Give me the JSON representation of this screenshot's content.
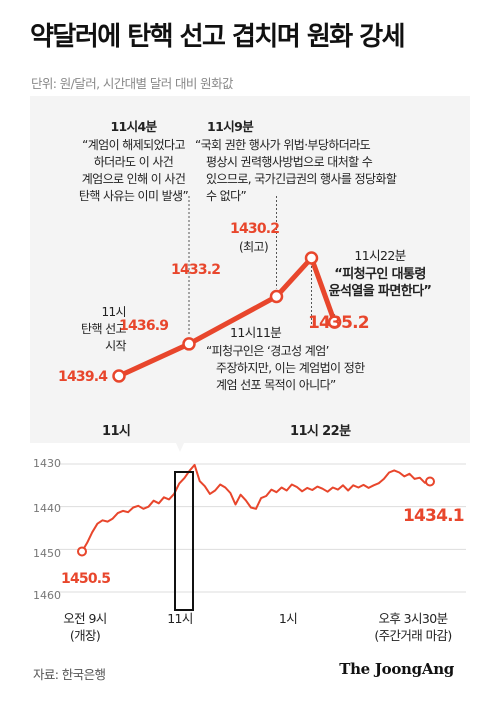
{
  "title": "약달러에 탄핵 선고 겹치며 원화 강세",
  "unit_label": "단위: 원/달러, 시간대별 달러 대비 원화값",
  "colors": {
    "accent": "#e8462c",
    "panel_bg": "#f4f4f4",
    "grid": "#dddddd"
  },
  "annotations": {
    "a1104": {
      "title": "11시4분",
      "lines": [
        "“계엄이 해제되었다고",
        "하더라도 이 사건",
        "계엄으로 인해 이 사건",
        "탄핵 사유는 이미 발생”"
      ]
    },
    "a1109": {
      "title": "11시9분",
      "lines": [
        "“국회 권한 행사가 위법·부당하더라도",
        "평상시 권력행사방법으로 대처할 수",
        "있으므로, 국가긴급권의 행사를 정당화할",
        "수 없다”"
      ]
    },
    "a1100": {
      "lines": [
        "11시",
        "탄핵 선고",
        "시작"
      ]
    },
    "a1111": {
      "title": "11시11분",
      "lines": [
        "“피청구인은 ‘경고성 계엄’",
        "주장하지만, 이는 계엄법이 정한",
        "계엄 선포 목적이 아니다”"
      ]
    },
    "a1122": {
      "title": "11시22분",
      "lines": [
        "“피청구인 대통령",
        "윤석열을 파면한다”"
      ]
    },
    "peak_note": "(최고)"
  },
  "chart_data": [
    {
      "type": "line",
      "x": [
        "11:00",
        "11:04",
        "11:09",
        "11:11",
        "11:22"
      ],
      "values": [
        1439.4,
        1436.9,
        1433.2,
        1430.2,
        1435.2
      ],
      "value_labels": [
        "1439.4",
        "1436.9",
        "1433.2",
        "1430.2",
        "1435.2"
      ],
      "y_inverted": true,
      "x_tick_labels": [
        "11시",
        "11시 22분"
      ]
    },
    {
      "type": "line",
      "y_inverted": true,
      "ylim": [
        1430,
        1460
      ],
      "y_ticks": [
        1430,
        1440,
        1450,
        1460
      ],
      "x_ticks": [
        {
          "lines": [
            "오전 9시",
            "(개장)"
          ]
        },
        {
          "lines": [
            "11시"
          ]
        },
        {
          "lines": [
            "1시"
          ]
        },
        {
          "lines": [
            "오후 3시30분",
            "(주간거래 마감)"
          ]
        }
      ],
      "start_label": "1450.5",
      "end_label": "1434.1",
      "series": [
        {
          "values": [
            1450.5,
            1448.5,
            1446,
            1444,
            1443.2,
            1443.5,
            1442.8,
            1441.5,
            1441.0,
            1441.3,
            1440.2,
            1439.8,
            1440.5,
            1440.0,
            1438.6,
            1439.2,
            1437.8,
            1438.3,
            1437.0,
            1434.6,
            1433.3,
            1431.6,
            1430.2,
            1434.0,
            1435.2,
            1437.0,
            1436.2,
            1434.8,
            1435.5,
            1436.8,
            1439.5,
            1437.2,
            1438.5,
            1440.2,
            1440.5,
            1438.0,
            1437.5,
            1436.0,
            1436.6,
            1435.5,
            1436.2,
            1434.8,
            1435.4,
            1436.4,
            1435.6,
            1436.1,
            1435.3,
            1435.8,
            1436.5,
            1435.5,
            1436.0,
            1435.0,
            1436.2,
            1435.0,
            1435.5,
            1434.9,
            1435.6,
            1435.0,
            1434.5,
            1433.5,
            1432.0,
            1431.5,
            1432.0,
            1432.9,
            1432.3,
            1433.5,
            1433.2,
            1434.4,
            1434.1
          ]
        }
      ]
    }
  ],
  "source": "자료: 한국은행",
  "brand": "The JoongAng"
}
